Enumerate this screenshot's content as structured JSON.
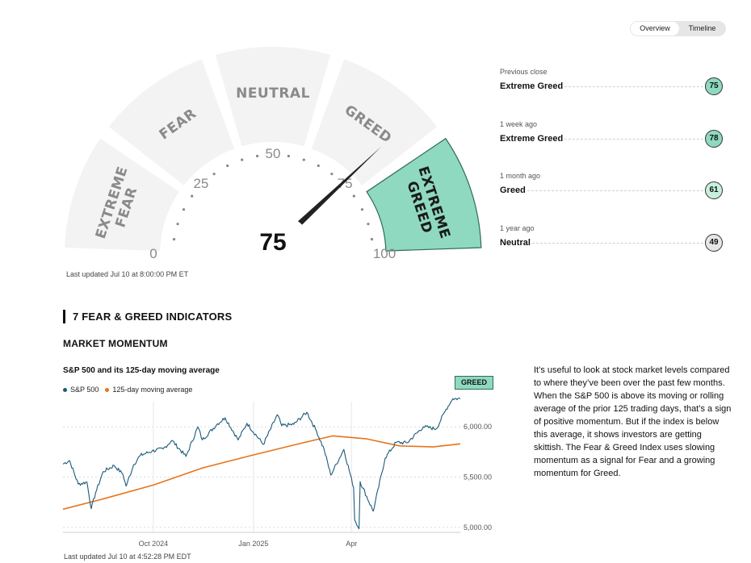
{
  "view_toggle": {
    "overview_label": "Overview",
    "timeline_label": "Timeline",
    "active": "Overview"
  },
  "gauge": {
    "score": 75,
    "zones": [
      {
        "label_lines": [
          "EXTREME",
          "FEAR"
        ]
      },
      {
        "label_lines": [
          "FEAR"
        ]
      },
      {
        "label_lines": [
          "NEUTRAL"
        ]
      },
      {
        "label_lines": [
          "GREED"
        ]
      },
      {
        "label_lines": [
          "EXTREME",
          "GREED"
        ]
      }
    ],
    "active_zone": 4,
    "ticks": [
      "0",
      "25",
      "50",
      "75",
      "100"
    ],
    "colors": {
      "zone": "#f3f3f3",
      "active_zone": "#8fd9c0",
      "active_border": "#2f6d54",
      "needle": "#222222"
    }
  },
  "last_updated": "Last updated Jul 10 at 8:00:00 PM ET",
  "history": [
    {
      "label": "Previous close",
      "rating": "Extreme Greed",
      "value": "75",
      "color": "#8fd9c0"
    },
    {
      "label": "1 week ago",
      "rating": "Extreme Greed",
      "value": "78",
      "color": "#8fd9c0"
    },
    {
      "label": "1 month ago",
      "rating": "Greed",
      "value": "61",
      "color": "#c6f0de"
    },
    {
      "label": "1 year ago",
      "rating": "Neutral",
      "value": "49",
      "color": "#e6e6e6"
    }
  ],
  "indicators_title": "7 FEAR & GREED INDICATORS",
  "market_momentum": {
    "title": "MARKET MOMENTUM",
    "chart_title": "S&P 500 and its 125-day moving average",
    "badge": "GREED",
    "description": "It’s useful to look at stock market levels compared to where they’ve been over the past few months. When the S&P 500 is above its moving or rolling average of the prior 125 trading days, that’s a sign of positive momentum. But if the index is below this average, it shows investors are getting skittish. The Fear & Greed Index uses slowing momentum as a signal for Fear and a growing momentum for Greed.",
    "last_updated": "Last updated Jul 10 at 4:52:28 PM EDT"
  },
  "chart_data": {
    "type": "line",
    "x_ticks": [
      "Oct 2024",
      "Jan 2025",
      "Apr"
    ],
    "y_ticks": [
      "5,000.00",
      "5,500.00",
      "6,000.00"
    ],
    "ylim": [
      4950,
      6250
    ],
    "x_range": [
      "2024-07-10",
      "2025-07-10"
    ],
    "series": [
      {
        "name": "S&P 500",
        "color": "#1a5a7a",
        "points": [
          [
            "2024-07-10",
            5630
          ],
          [
            "2024-07-16",
            5665
          ],
          [
            "2024-07-24",
            5430
          ],
          [
            "2024-08-01",
            5450
          ],
          [
            "2024-08-05",
            5185
          ],
          [
            "2024-08-09",
            5345
          ],
          [
            "2024-08-16",
            5555
          ],
          [
            "2024-08-26",
            5615
          ],
          [
            "2024-09-03",
            5530
          ],
          [
            "2024-09-06",
            5410
          ],
          [
            "2024-09-13",
            5625
          ],
          [
            "2024-09-19",
            5715
          ],
          [
            "2024-09-30",
            5760
          ],
          [
            "2024-10-10",
            5780
          ],
          [
            "2024-10-18",
            5865
          ],
          [
            "2024-10-31",
            5705
          ],
          [
            "2024-11-11",
            6000
          ],
          [
            "2024-11-15",
            5870
          ],
          [
            "2024-11-29",
            6030
          ],
          [
            "2024-12-06",
            6090
          ],
          [
            "2024-12-18",
            5870
          ],
          [
            "2024-12-26",
            6035
          ],
          [
            "2025-01-10",
            5825
          ],
          [
            "2025-01-23",
            6120
          ],
          [
            "2025-01-27",
            6010
          ],
          [
            "2025-02-07",
            6025
          ],
          [
            "2025-02-19",
            6145
          ],
          [
            "2025-02-28",
            5955
          ],
          [
            "2025-03-07",
            5770
          ],
          [
            "2025-03-13",
            5520
          ],
          [
            "2025-03-25",
            5775
          ],
          [
            "2025-04-03",
            5395
          ],
          [
            "2025-04-04",
            5075
          ],
          [
            "2025-04-08",
            4985
          ],
          [
            "2025-04-09",
            5455
          ],
          [
            "2025-04-21",
            5160
          ],
          [
            "2025-05-02",
            5690
          ],
          [
            "2025-05-12",
            5845
          ],
          [
            "2025-05-22",
            5840
          ],
          [
            "2025-06-06",
            6000
          ],
          [
            "2025-06-18",
            5980
          ],
          [
            "2025-06-27",
            6175
          ],
          [
            "2025-07-03",
            6280
          ],
          [
            "2025-07-10",
            6280
          ]
        ]
      },
      {
        "name": "125-day moving average",
        "color": "#e8731a",
        "points": [
          [
            "2024-07-10",
            5180
          ],
          [
            "2024-08-15",
            5280
          ],
          [
            "2024-10-01",
            5420
          ],
          [
            "2024-11-15",
            5590
          ],
          [
            "2025-01-01",
            5720
          ],
          [
            "2025-02-15",
            5840
          ],
          [
            "2025-03-15",
            5910
          ],
          [
            "2025-04-15",
            5880
          ],
          [
            "2025-05-15",
            5810
          ],
          [
            "2025-06-15",
            5800
          ],
          [
            "2025-07-10",
            5830
          ]
        ]
      }
    ]
  }
}
